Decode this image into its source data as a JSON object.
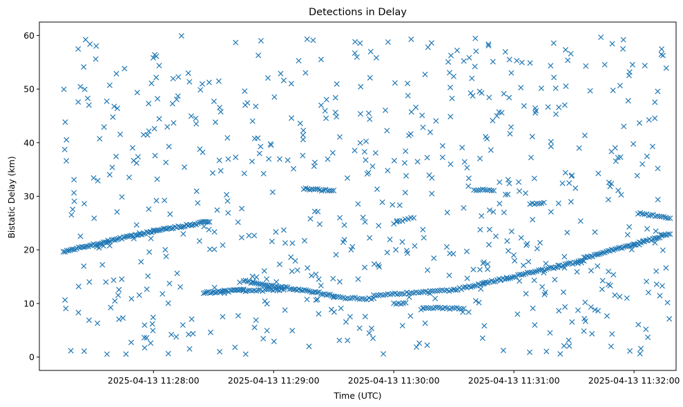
{
  "chart_data": {
    "type": "scatter",
    "title": "Detections in Delay",
    "xlabel": "Time (UTC)",
    "ylabel": "Bistatic Delay (km)",
    "marker": "x",
    "color": "#1f77b4",
    "grid": false,
    "legend": "none",
    "xlim": [
      "2025-04-13 11:27:03",
      "2025-04-13 11:32:21"
    ],
    "ylim": [
      -2.5,
      62.5
    ],
    "x_ticks": [
      "2025-04-13 11:28:00",
      "2025-04-13 11:29:00",
      "2025-04-13 11:30:00",
      "2025-04-13 11:31:00",
      "2025-04-13 11:32:00"
    ],
    "y_ticks": [
      0,
      10,
      20,
      30,
      40,
      50,
      60
    ],
    "series": [
      {
        "tracks": [
          {
            "start": "2025-04-13 11:27:15",
            "end": "2025-04-13 11:28:00",
            "y_start": 19.7,
            "y_end": 23.5,
            "count": 55
          },
          {
            "start": "2025-04-13 11:28:00",
            "end": "2025-04-13 11:28:28",
            "y_start": 23.5,
            "y_end": 25.3,
            "count": 35
          },
          {
            "start": "2025-04-13 11:28:25",
            "end": "2025-04-13 11:28:45",
            "y_start": 12.0,
            "y_end": 12.5,
            "count": 25
          },
          {
            "start": "2025-04-13 11:28:45",
            "end": "2025-04-13 11:29:30",
            "y_start": 14.2,
            "y_end": 11.5,
            "count": 50
          },
          {
            "start": "2025-04-13 11:28:45",
            "end": "2025-04-13 11:29:05",
            "y_start": 12.3,
            "y_end": 12.6,
            "count": 20
          },
          {
            "start": "2025-04-13 11:29:15",
            "end": "2025-04-13 11:29:30",
            "y_start": 31.4,
            "y_end": 31.0,
            "count": 16
          },
          {
            "start": "2025-04-13 11:29:30",
            "end": "2025-04-13 11:29:50",
            "y_start": 11.2,
            "y_end": 10.8,
            "count": 18
          },
          {
            "start": "2025-04-13 11:29:50",
            "end": "2025-04-13 11:30:30",
            "y_start": 11.5,
            "y_end": 12.5,
            "count": 35
          },
          {
            "start": "2025-04-13 11:30:00",
            "end": "2025-04-13 11:30:06",
            "y_start": 10.0,
            "y_end": 10.0,
            "count": 6
          },
          {
            "start": "2025-04-13 11:30:00",
            "end": "2025-04-13 11:30:10",
            "y_start": 25.0,
            "y_end": 26.0,
            "count": 8
          },
          {
            "start": "2025-04-13 11:30:15",
            "end": "2025-04-13 11:30:35",
            "y_start": 9.3,
            "y_end": 9.0,
            "count": 18
          },
          {
            "start": "2025-04-13 11:30:30",
            "end": "2025-04-13 11:31:35",
            "y_start": 12.5,
            "y_end": 18.0,
            "count": 70
          },
          {
            "start": "2025-04-13 11:30:40",
            "end": "2025-04-13 11:30:50",
            "y_start": 31.3,
            "y_end": 31.0,
            "count": 10
          },
          {
            "start": "2025-04-13 11:31:08",
            "end": "2025-04-13 11:31:15",
            "y_start": 28.7,
            "y_end": 28.7,
            "count": 7
          },
          {
            "start": "2025-04-13 11:31:35",
            "end": "2025-04-13 11:32:00",
            "y_start": 18.5,
            "y_end": 21.0,
            "count": 30
          },
          {
            "start": "2025-04-13 11:32:00",
            "end": "2025-04-13 11:32:18",
            "y_start": 21.0,
            "y_end": 23.0,
            "count": 22
          },
          {
            "start": "2025-04-13 11:32:02",
            "end": "2025-04-13 11:32:18",
            "y_start": 26.8,
            "y_end": 26.0,
            "count": 16
          }
        ],
        "clutter": {
          "start": "2025-04-13 11:27:15",
          "end": "2025-04-13 11:32:18",
          "y_min": 0.5,
          "y_max": 60.0,
          "count": 650
        }
      }
    ]
  }
}
